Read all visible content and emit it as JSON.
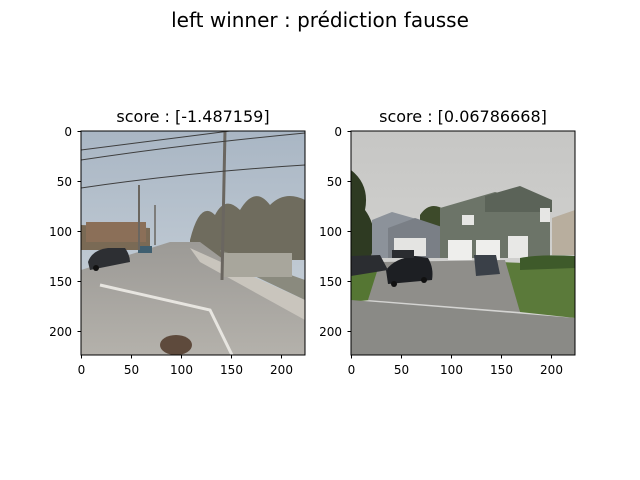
{
  "figure": {
    "suptitle": "left winner : prédiction fausse"
  },
  "chart_data": [
    {
      "type": "image",
      "title": "score : [-1.487159]",
      "xlim": [
        0,
        224
      ],
      "ylim": [
        224,
        0
      ],
      "xticks": [
        0,
        50,
        100,
        150,
        200
      ],
      "yticks": [
        0,
        50,
        100,
        150,
        200
      ],
      "image_description": "street-view photo of a suburban road with parked car and utility poles"
    },
    {
      "type": "image",
      "title": "score : [0.06786668]",
      "xlim": [
        0,
        224
      ],
      "ylim": [
        224,
        0
      ],
      "xticks": [
        0,
        50,
        100,
        150,
        200
      ],
      "yticks": [
        0,
        50,
        100,
        150,
        200
      ],
      "image_description": "street-view photo of a two-storey house with garage and parked cars"
    }
  ],
  "icons": {
    "left_image": "street-scene-image",
    "right_image": "house-scene-image"
  }
}
